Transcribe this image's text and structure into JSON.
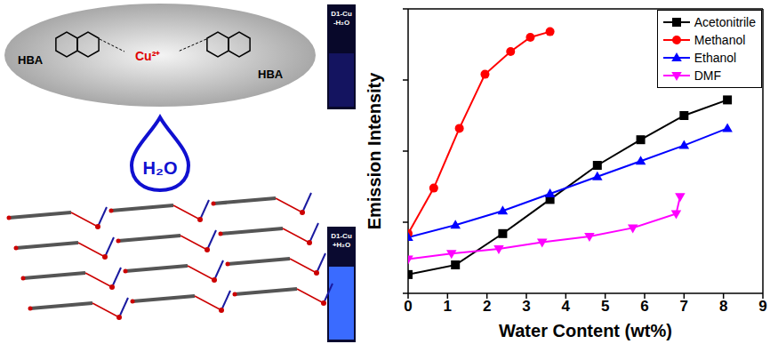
{
  "chart_data": {
    "type": "line",
    "xlabel": "Water Content (wt%)",
    "ylabel": "Emission Intensity",
    "xlim": [
      0,
      9
    ],
    "xticks": [
      0,
      1,
      2,
      3,
      4,
      5,
      6,
      7,
      8,
      9
    ],
    "ylim": [
      0,
      100
    ],
    "yticks": [
      0,
      25,
      50,
      75,
      100
    ],
    "tick_labels": "x",
    "grid": false,
    "legend": "upper right",
    "series": [
      {
        "name": "Acetonitrile",
        "color": "#000000",
        "marker": "square",
        "x": [
          0,
          1.2,
          2.4,
          3.6,
          4.8,
          5.9,
          7,
          8.1
        ],
        "values": [
          6.6,
          10,
          21,
          33,
          45,
          54,
          62.5,
          68
        ]
      },
      {
        "name": "Methanol",
        "color": "#ff0000",
        "marker": "circle",
        "x": [
          0,
          0.65,
          1.3,
          1.95,
          2.6,
          3.1,
          3.6
        ],
        "values": [
          21,
          37,
          58,
          77,
          85,
          90,
          92
        ]
      },
      {
        "name": "Ethanol",
        "color": "#0000ff",
        "marker": "triangle",
        "x": [
          0,
          1.2,
          2.4,
          3.6,
          4.8,
          5.9,
          7,
          8.1
        ],
        "values": [
          19.7,
          24,
          29,
          35,
          41,
          46.5,
          52,
          58
        ]
      },
      {
        "name": "DMF",
        "color": "#ff00ff",
        "marker": "triangle-down",
        "x": [
          0,
          1.1,
          2.3,
          3.4,
          4.6,
          5.7,
          6.8,
          6.9
        ],
        "values": [
          12,
          14,
          15.6,
          18,
          20,
          23,
          28,
          34
        ]
      }
    ]
  },
  "diagram": {
    "complex": {
      "ligand_label": "HBA",
      "metal": "Cu²⁺"
    },
    "drop": "H₂O",
    "vials": [
      {
        "label": "D1-Cu",
        "state": "-H₂O"
      },
      {
        "label": "D1-Cu",
        "state": "+H₂O"
      }
    ]
  }
}
